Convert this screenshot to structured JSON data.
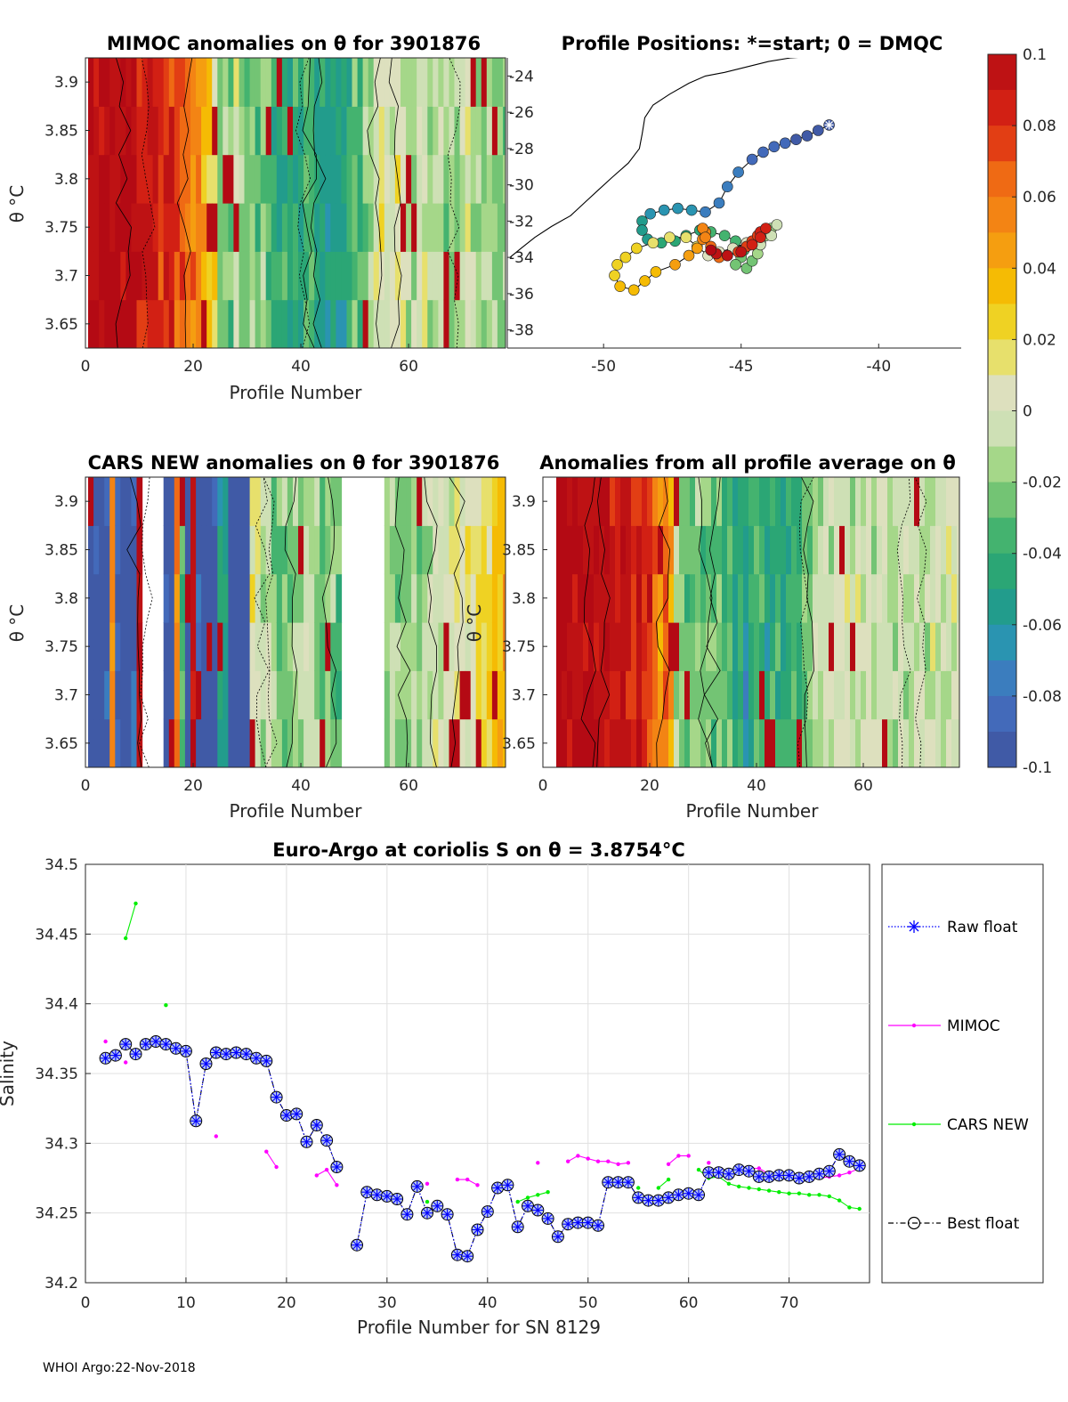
{
  "panel_mimoc": {
    "title": "MIMOC anomalies on θ  for 3901876",
    "xlabel": "Profile Number",
    "ylabel": "θ °C"
  },
  "panel_positions": {
    "title": "Profile Positions: *=start; 0 = DMQC"
  },
  "panel_cars": {
    "title": "CARS NEW anomalies on θ for 3901876",
    "xlabel": "Profile Number",
    "ylabel": "θ °C"
  },
  "panel_allavg": {
    "title": "Anomalies from all profile average on θ",
    "xlabel": "Profile Number",
    "ylabel": "θ °C"
  },
  "main": {
    "title": "Euro-Argo at coriolis S on θ = 3.8754°C",
    "xlabel": "Profile Number for SN 8129",
    "ylabel": "Salinity"
  },
  "legend": {
    "raw": "Raw float",
    "mimoc": "MIMOC",
    "cars": "CARS NEW",
    "best": "Best float"
  },
  "footer": "WHOI Argo:22-Nov-2018",
  "chart_data": [
    {
      "id": "mimoc_anomaly",
      "type": "heatmap",
      "title": "MIMOC anomalies on θ  for 3901876",
      "xlabel": "Profile Number",
      "ylabel": "θ °C",
      "xlim": [
        0,
        78
      ],
      "ylim": [
        3.625,
        3.925
      ],
      "xticks": [
        0,
        20,
        40,
        60
      ],
      "yticks": [
        3.65,
        3.7,
        3.75,
        3.8,
        3.85,
        3.9
      ],
      "column_anomalies": [
        0.1,
        0.1,
        0.1,
        0.1,
        0.1,
        0.1,
        0.1,
        0.1,
        0.1,
        0.09,
        0.09,
        0.09,
        0.09,
        0.08,
        0.08,
        0.08,
        0.07,
        0.07,
        0.06,
        0.06,
        0.05,
        0.04,
        0.03,
        0.02,
        -0.02,
        -0.02,
        -0.03,
        0.0,
        -0.02,
        -0.03,
        -0.02,
        -0.03,
        -0.02,
        -0.03,
        -0.04,
        -0.05,
        -0.04,
        -0.05,
        -0.04,
        -0.05,
        -0.03,
        -0.04,
        -0.05,
        -0.05,
        -0.06,
        -0.05,
        -0.06,
        -0.05,
        -0.04,
        -0.03,
        -0.04,
        -0.02,
        -0.01,
        0.0,
        0.01,
        0.0,
        0.0,
        0.01,
        0.0,
        -0.01,
        -0.01,
        0.0,
        0.0,
        -0.02,
        -0.01,
        -0.01,
        -0.02,
        -0.01,
        -0.02,
        -0.01,
        0.01,
        -0.01,
        -0.02,
        -0.02,
        -0.01,
        -0.02,
        -0.02,
        -0.02
      ],
      "colorbar": {
        "range": [
          -0.1,
          0.1
        ],
        "ticks": [
          "0.1",
          "0.08",
          "0.06",
          "0.04",
          "0.02",
          "0",
          "-0.02",
          "-0.04",
          "-0.06",
          "-0.08",
          "-0.1"
        ]
      }
    },
    {
      "id": "profile_positions",
      "type": "scatter",
      "title": "Profile Positions: *=start; 0 = DMQC",
      "xlim": [
        -53.5,
        -37
      ],
      "ylim": [
        -39,
        -23
      ],
      "xticks": [
        -50,
        -45,
        -40
      ],
      "yticks": [
        -24,
        -26,
        -28,
        -30,
        -32,
        -34,
        -36,
        -38
      ],
      "track": [
        [
          -41.8,
          -26.7
        ],
        [
          -42.2,
          -27.0
        ],
        [
          -42.6,
          -27.3
        ],
        [
          -43.0,
          -27.5
        ],
        [
          -43.4,
          -27.7
        ],
        [
          -43.8,
          -27.9
        ],
        [
          -44.2,
          -28.2
        ],
        [
          -44.6,
          -28.6
        ],
        [
          -45.1,
          -29.3
        ],
        [
          -45.5,
          -30.1
        ],
        [
          -45.8,
          -31.0
        ],
        [
          -46.3,
          -31.5
        ],
        [
          -46.8,
          -31.4
        ],
        [
          -47.3,
          -31.3
        ],
        [
          -47.8,
          -31.4
        ],
        [
          -48.3,
          -31.6
        ],
        [
          -48.6,
          -32.0
        ],
        [
          -48.6,
          -32.5
        ],
        [
          -48.4,
          -33.0
        ],
        [
          -47.9,
          -33.2
        ],
        [
          -47.4,
          -33.1
        ],
        [
          -47.0,
          -32.8
        ],
        [
          -46.5,
          -32.5
        ],
        [
          -46.1,
          -32.6
        ],
        [
          -45.6,
          -32.8
        ],
        [
          -45.2,
          -33.1
        ],
        [
          -44.9,
          -33.6
        ],
        [
          -45.0,
          -34.0
        ],
        [
          -45.2,
          -34.4
        ],
        [
          -44.8,
          -34.6
        ],
        [
          -44.6,
          -34.2
        ],
        [
          -44.4,
          -33.8
        ],
        [
          -44.3,
          -33.2
        ],
        [
          -44.1,
          -32.8
        ],
        [
          -43.9,
          -32.4
        ],
        [
          -43.7,
          -32.2
        ],
        [
          -43.9,
          -32.8
        ],
        [
          -44.3,
          -33.3
        ],
        [
          -44.8,
          -33.2
        ],
        [
          -45.3,
          -33.5
        ],
        [
          -45.8,
          -33.7
        ],
        [
          -46.2,
          -33.9
        ],
        [
          -46.6,
          -33.4
        ],
        [
          -47.0,
          -32.9
        ],
        [
          -47.6,
          -32.9
        ],
        [
          -48.2,
          -33.2
        ],
        [
          -48.8,
          -33.5
        ],
        [
          -49.2,
          -34.0
        ],
        [
          -49.5,
          -34.4
        ],
        [
          -49.6,
          -35.0
        ],
        [
          -49.4,
          -35.6
        ],
        [
          -48.9,
          -35.8
        ],
        [
          -48.5,
          -35.3
        ],
        [
          -48.1,
          -34.8
        ],
        [
          -47.4,
          -34.4
        ],
        [
          -46.9,
          -33.9
        ],
        [
          -46.6,
          -33.5
        ],
        [
          -46.4,
          -33.0
        ],
        [
          -46.3,
          -32.6
        ],
        [
          -46.4,
          -32.4
        ],
        [
          -46.3,
          -32.9
        ],
        [
          -46.1,
          -33.4
        ],
        [
          -45.9,
          -33.8
        ],
        [
          -45.8,
          -34.0
        ],
        [
          -45.5,
          -33.9
        ],
        [
          -45.1,
          -33.7
        ],
        [
          -44.8,
          -33.4
        ],
        [
          -44.6,
          -33.1
        ],
        [
          -44.4,
          -32.8
        ],
        [
          -44.3,
          -32.6
        ],
        [
          -44.1,
          -32.4
        ],
        [
          -44.3,
          -32.9
        ],
        [
          -44.6,
          -33.3
        ],
        [
          -45.0,
          -33.7
        ],
        [
          -45.5,
          -33.9
        ],
        [
          -45.9,
          -33.8
        ],
        [
          -46.1,
          -33.6
        ]
      ],
      "coastline": [
        [
          -53.4,
          -34.0
        ],
        [
          -53.0,
          -33.5
        ],
        [
          -52.5,
          -32.9
        ],
        [
          -51.9,
          -32.3
        ],
        [
          -51.2,
          -31.7
        ],
        [
          -50.7,
          -31.0
        ],
        [
          -50.2,
          -30.3
        ],
        [
          -49.7,
          -29.6
        ],
        [
          -49.1,
          -28.8
        ],
        [
          -48.7,
          -28.0
        ],
        [
          -48.6,
          -27.2
        ],
        [
          -48.5,
          -26.3
        ],
        [
          -48.2,
          -25.6
        ],
        [
          -47.6,
          -25.0
        ],
        [
          -46.9,
          -24.4
        ],
        [
          -46.3,
          -24.0
        ],
        [
          -45.6,
          -23.8
        ],
        [
          -44.8,
          -23.5
        ],
        [
          -44.0,
          -23.2
        ],
        [
          -43.2,
          -23.0
        ],
        [
          -42.2,
          -22.9
        ]
      ]
    },
    {
      "id": "cars_anomaly",
      "type": "heatmap",
      "title": "CARS NEW anomalies on θ for 3901876",
      "xlabel": "Profile Number",
      "ylabel": "θ °C",
      "xlim": [
        0,
        78
      ],
      "ylim": [
        3.625,
        3.925
      ],
      "xticks": [
        0,
        20,
        40,
        60
      ],
      "yticks": [
        3.65,
        3.7,
        3.75,
        3.8,
        3.85,
        3.9
      ],
      "column_anomalies": [
        -0.1,
        -0.1,
        -0.1,
        -0.09,
        0.05,
        -0.09,
        -0.1,
        -0.1,
        -0.09,
        0.1,
        null,
        null,
        null,
        null,
        -0.1,
        -0.1,
        0.06,
        -0.03,
        -0.1,
        0.1,
        -0.09,
        -0.1,
        -0.1,
        -0.1,
        -0.05,
        -0.06,
        -0.1,
        -0.1,
        -0.1,
        -0.1,
        0.01,
        0.0,
        -0.01,
        0.0,
        -0.02,
        -0.03,
        -0.02,
        -0.03,
        -0.01,
        -0.02,
        0.0,
        -0.01,
        -0.02,
        -0.03,
        -0.02,
        -0.02,
        -0.03,
        null,
        null,
        null,
        null,
        null,
        null,
        null,
        null,
        -0.02,
        -0.01,
        -0.02,
        -0.02,
        -0.02,
        -0.01,
        -0.02,
        -0.01,
        -0.01,
        0.0,
        -0.01,
        0.0,
        0.0,
        0.01,
        0.0,
        0.01,
        0.01,
        0.02,
        0.02,
        0.02,
        0.03,
        0.03,
        0.04
      ]
    },
    {
      "id": "all_profile_average_anomaly",
      "type": "heatmap",
      "title": "Anomalies from all profile average on θ",
      "xlabel": "Profile Number",
      "ylabel": "θ °C",
      "xlim": [
        0,
        78
      ],
      "ylim": [
        3.625,
        3.925
      ],
      "xticks": [
        0,
        20,
        40,
        60
      ],
      "yticks": [
        3.65,
        3.7,
        3.75,
        3.8,
        3.85,
        3.9
      ],
      "column_anomalies": [
        null,
        null,
        0.1,
        0.1,
        0.1,
        0.1,
        0.1,
        0.1,
        0.1,
        0.1,
        0.1,
        0.1,
        0.09,
        0.09,
        0.1,
        0.09,
        0.08,
        0.09,
        0.08,
        0.07,
        0.06,
        0.05,
        0.06,
        0.04,
        -0.01,
        -0.02,
        -0.03,
        -0.02,
        -0.02,
        -0.03,
        -0.02,
        -0.03,
        -0.02,
        -0.04,
        -0.03,
        -0.05,
        -0.04,
        -0.06,
        -0.04,
        -0.03,
        -0.04,
        -0.05,
        -0.04,
        -0.04,
        -0.05,
        -0.04,
        -0.03,
        -0.04,
        -0.03,
        -0.02,
        -0.01,
        -0.02,
        0.0,
        -0.01,
        0.0,
        0.0,
        0.0,
        -0.01,
        0.0,
        0.0,
        0.0,
        -0.01,
        0.0,
        0.0,
        -0.01,
        -0.01,
        0.0,
        -0.01,
        -0.01,
        0.0,
        -0.01,
        -0.01,
        0.0,
        0.0,
        -0.01,
        0.0,
        0.0,
        0.0
      ]
    },
    {
      "id": "salinity_series",
      "type": "line",
      "title": "Euro-Argo at coriolis S on θ = 3.8754°C",
      "xlabel": "Profile Number for SN 8129",
      "ylabel": "Salinity",
      "xlim": [
        0,
        78
      ],
      "ylim": [
        34.2,
        34.5
      ],
      "xticks": [
        0,
        10,
        20,
        30,
        40,
        50,
        60,
        70
      ],
      "yticks": [
        34.2,
        34.25,
        34.3,
        34.35,
        34.4,
        34.45,
        34.5
      ],
      "x": [
        2,
        3,
        4,
        5,
        6,
        7,
        8,
        9,
        10,
        11,
        12,
        13,
        14,
        15,
        16,
        17,
        18,
        19,
        20,
        21,
        22,
        23,
        24,
        25,
        26,
        27,
        28,
        29,
        30,
        31,
        32,
        33,
        34,
        35,
        36,
        37,
        38,
        39,
        40,
        41,
        42,
        43,
        44,
        45,
        46,
        47,
        48,
        49,
        50,
        51,
        52,
        53,
        54,
        55,
        56,
        57,
        58,
        59,
        60,
        61,
        62,
        63,
        64,
        65,
        66,
        67,
        68,
        69,
        70,
        71,
        72,
        73,
        74,
        75,
        76,
        77
      ],
      "series": [
        {
          "name": "Raw float",
          "values": [
            34.361,
            34.363,
            34.371,
            34.364,
            34.371,
            34.373,
            34.371,
            34.368,
            34.366,
            34.316,
            34.357,
            34.365,
            34.364,
            34.365,
            34.364,
            34.361,
            34.359,
            34.333,
            34.32,
            34.321,
            34.301,
            34.313,
            34.302,
            34.283,
            null,
            34.227,
            34.265,
            34.263,
            34.262,
            34.26,
            34.249,
            34.269,
            34.25,
            34.255,
            34.249,
            34.22,
            34.219,
            34.238,
            34.251,
            34.268,
            34.27,
            34.24,
            34.255,
            34.252,
            34.246,
            34.233,
            34.242,
            34.243,
            34.243,
            34.241,
            34.272,
            34.272,
            34.272,
            34.261,
            34.259,
            34.259,
            34.261,
            34.263,
            34.264,
            34.263,
            34.279,
            34.279,
            34.278,
            34.281,
            34.28,
            34.276,
            34.276,
            34.277,
            34.277,
            34.275,
            34.276,
            34.278,
            34.28,
            34.292,
            34.287,
            34.284
          ]
        },
        {
          "name": "MIMOC",
          "values": [
            34.373,
            null,
            34.358,
            null,
            null,
            null,
            null,
            null,
            null,
            null,
            null,
            34.305,
            null,
            null,
            null,
            null,
            34.294,
            34.283,
            null,
            null,
            null,
            34.277,
            34.281,
            34.27,
            null,
            null,
            null,
            null,
            null,
            null,
            null,
            null,
            34.271,
            null,
            null,
            34.274,
            34.274,
            34.27,
            null,
            null,
            null,
            null,
            null,
            34.286,
            null,
            null,
            34.287,
            34.291,
            34.289,
            34.287,
            34.287,
            34.285,
            34.286,
            null,
            null,
            null,
            34.285,
            34.291,
            34.291,
            null,
            34.286,
            null,
            null,
            34.283,
            34.282,
            34.282,
            34.278,
            34.278,
            34.277,
            34.276,
            34.275,
            34.275,
            34.276,
            34.277,
            34.279,
            34.282
          ]
        },
        {
          "name": "CARS NEW",
          "values": [
            null,
            null,
            34.447,
            34.472,
            null,
            null,
            34.399,
            null,
            null,
            null,
            null,
            null,
            null,
            null,
            null,
            null,
            null,
            null,
            null,
            null,
            null,
            null,
            null,
            null,
            null,
            null,
            null,
            null,
            null,
            null,
            34.251,
            null,
            34.258,
            null,
            null,
            null,
            null,
            null,
            null,
            null,
            null,
            34.258,
            34.261,
            34.263,
            34.265,
            null,
            null,
            null,
            null,
            null,
            null,
            null,
            null,
            34.268,
            null,
            34.268,
            34.274,
            null,
            null,
            34.281,
            34.275,
            34.276,
            34.271,
            34.269,
            34.268,
            34.267,
            34.266,
            34.265,
            34.264,
            34.264,
            34.263,
            34.263,
            34.262,
            34.259,
            34.254,
            34.253
          ]
        },
        {
          "name": "Best float",
          "values": [
            34.361,
            34.363,
            34.371,
            34.364,
            34.371,
            34.373,
            34.371,
            34.368,
            34.366,
            34.316,
            34.357,
            34.365,
            34.364,
            34.365,
            34.364,
            34.361,
            34.359,
            34.333,
            34.32,
            34.321,
            34.301,
            34.313,
            34.302,
            34.283,
            null,
            34.227,
            34.265,
            34.263,
            34.262,
            34.26,
            34.249,
            34.269,
            34.25,
            34.255,
            34.249,
            34.22,
            34.219,
            34.238,
            34.251,
            34.268,
            34.27,
            34.24,
            34.255,
            34.252,
            34.246,
            34.233,
            34.242,
            34.243,
            34.243,
            34.241,
            34.272,
            34.272,
            34.272,
            34.261,
            34.259,
            34.259,
            34.261,
            34.263,
            34.264,
            34.263,
            34.279,
            34.279,
            34.278,
            34.281,
            34.28,
            34.276,
            34.276,
            34.277,
            34.277,
            34.275,
            34.276,
            34.278,
            34.28,
            34.292,
            34.287,
            34.284
          ]
        }
      ]
    }
  ]
}
